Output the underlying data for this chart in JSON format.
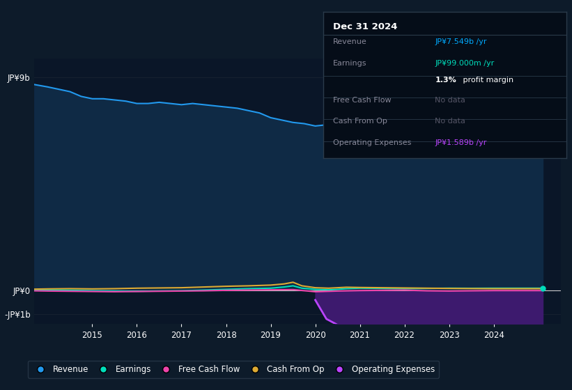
{
  "background_color": "#0d1b2a",
  "plot_bg_color": "#0a1628",
  "title": "Dec 31 2024",
  "info_box": {
    "bg": "#050d18",
    "border": "#2a3a4a",
    "title_color": "#ffffff",
    "label_color": "#888899",
    "nodata_color": "#555566",
    "rows": [
      {
        "label": "Revenue",
        "value": "JP¥7.549b /yr",
        "value_color": "#00aaff"
      },
      {
        "label": "Earnings",
        "value": "JP¥99.000m /yr",
        "value_color": "#00ddbb"
      },
      {
        "label": "",
        "value": "1.3% profit margin",
        "value_color": "#ffffff",
        "bold_part": "1.3%"
      },
      {
        "label": "Free Cash Flow",
        "value": "No data",
        "value_color": "#555566"
      },
      {
        "label": "Cash From Op",
        "value": "No data",
        "value_color": "#555566"
      },
      {
        "label": "Operating Expenses",
        "value": "JP¥1.589b /yr",
        "value_color": "#bb44ff"
      }
    ]
  },
  "y_labels": [
    "JP¥9b",
    "JP¥0",
    "-JP¥1b"
  ],
  "y_ticks": [
    9000000000,
    0,
    -1000000000
  ],
  "x_ticks": [
    2015,
    2016,
    2017,
    2018,
    2019,
    2020,
    2021,
    2022,
    2023,
    2024
  ],
  "ylim": [
    -1400000000,
    9800000000
  ],
  "xlim_start": 2013.7,
  "xlim_end": 2025.5,
  "revenue_color": "#2299ee",
  "revenue_fill": "#0f2a45",
  "earnings_color": "#00ddbb",
  "fcf_color": "#ee44aa",
  "cashop_color": "#ddaa33",
  "opex_color": "#bb44ff",
  "opex_fill": "#3d1a6e",
  "grid_color": "#162030",
  "zero_line_color": "#cccccc",
  "legend_items": [
    {
      "label": "Revenue",
      "color": "#2299ee"
    },
    {
      "label": "Earnings",
      "color": "#00ddbb"
    },
    {
      "label": "Free Cash Flow",
      "color": "#ee44aa"
    },
    {
      "label": "Cash From Op",
      "color": "#ddaa33"
    },
    {
      "label": "Operating Expenses",
      "color": "#bb44ff"
    }
  ],
  "revenue_data": {
    "years": [
      2013.7,
      2014.0,
      2014.25,
      2014.5,
      2014.75,
      2015.0,
      2015.25,
      2015.5,
      2015.75,
      2016.0,
      2016.25,
      2016.5,
      2016.75,
      2017.0,
      2017.25,
      2017.5,
      2017.75,
      2018.0,
      2018.25,
      2018.5,
      2018.75,
      2019.0,
      2019.25,
      2019.5,
      2019.75,
      2020.0,
      2020.25,
      2020.5,
      2020.75,
      2021.0,
      2021.25,
      2021.5,
      2021.75,
      2022.0,
      2022.25,
      2022.5,
      2022.75,
      2023.0,
      2023.25,
      2023.5,
      2023.75,
      2024.0,
      2024.25,
      2024.5,
      2024.75,
      2025.1
    ],
    "values": [
      8700000000,
      8600000000,
      8500000000,
      8400000000,
      8200000000,
      8100000000,
      8100000000,
      8050000000,
      8000000000,
      7900000000,
      7900000000,
      7950000000,
      7900000000,
      7850000000,
      7900000000,
      7850000000,
      7800000000,
      7750000000,
      7700000000,
      7600000000,
      7500000000,
      7300000000,
      7200000000,
      7100000000,
      7050000000,
      6950000000,
      7000000000,
      7050000000,
      7100000000,
      7200000000,
      7250000000,
      7350000000,
      7400000000,
      7450000000,
      7500000000,
      7480000000,
      7470000000,
      7480000000,
      7490000000,
      7500000000,
      7510000000,
      7520000000,
      7560000000,
      7600000000,
      7620000000,
      7549000000
    ]
  },
  "earnings_data": {
    "years": [
      2013.7,
      2014.0,
      2014.5,
      2015.0,
      2015.5,
      2016.0,
      2016.5,
      2017.0,
      2017.5,
      2018.0,
      2018.5,
      2019.0,
      2019.3,
      2019.5,
      2019.7,
      2020.0,
      2020.3,
      2020.5,
      2020.7,
      2021.0,
      2021.5,
      2022.0,
      2022.5,
      2023.0,
      2023.5,
      2024.0,
      2025.1
    ],
    "values": [
      30000000,
      20000000,
      10000000,
      -10000000,
      -20000000,
      -30000000,
      -20000000,
      -10000000,
      20000000,
      50000000,
      80000000,
      100000000,
      150000000,
      200000000,
      100000000,
      50000000,
      30000000,
      50000000,
      80000000,
      100000000,
      90000000,
      80000000,
      90000000,
      100000000,
      95000000,
      99000000,
      99000000
    ]
  },
  "fcf_data": {
    "years": [
      2013.7,
      2014.0,
      2014.5,
      2015.0,
      2015.5,
      2016.0,
      2016.5,
      2017.0,
      2017.5,
      2018.0,
      2018.5,
      2019.0,
      2019.5,
      2020.0,
      2020.5,
      2021.0,
      2021.5,
      2022.0,
      2022.5,
      2023.0,
      2023.5,
      2024.0,
      2025.1
    ],
    "values": [
      -10000000,
      -20000000,
      -30000000,
      -40000000,
      -50000000,
      -40000000,
      -30000000,
      -20000000,
      -10000000,
      10000000,
      20000000,
      30000000,
      40000000,
      -50000000,
      -20000000,
      0,
      10000000,
      20000000,
      -10000000,
      -20000000,
      -10000000,
      0,
      0
    ]
  },
  "cashop_data": {
    "years": [
      2013.7,
      2014.0,
      2014.5,
      2015.0,
      2015.5,
      2016.0,
      2016.5,
      2017.0,
      2017.5,
      2018.0,
      2018.5,
      2019.0,
      2019.3,
      2019.5,
      2019.7,
      2020.0,
      2020.3,
      2020.5,
      2020.7,
      2021.0,
      2021.5,
      2022.0,
      2022.5,
      2023.0,
      2023.5,
      2024.0,
      2025.1
    ],
    "values": [
      60000000,
      70000000,
      80000000,
      70000000,
      80000000,
      100000000,
      110000000,
      120000000,
      150000000,
      180000000,
      200000000,
      230000000,
      280000000,
      350000000,
      200000000,
      120000000,
      100000000,
      120000000,
      140000000,
      130000000,
      120000000,
      110000000,
      100000000,
      90000000,
      85000000,
      80000000,
      80000000
    ]
  },
  "opex_data": {
    "years": [
      2020.0,
      2020.25,
      2020.5,
      2020.75,
      2021.0,
      2021.5,
      2022.0,
      2022.5,
      2023.0,
      2023.5,
      2024.0,
      2024.5,
      2025.1
    ],
    "values": [
      -400000000,
      -1200000000,
      -1450000000,
      -1500000000,
      -1520000000,
      -1530000000,
      -1540000000,
      -1540000000,
      -1545000000,
      -1550000000,
      -1570000000,
      -1580000000,
      -1589000000
    ]
  }
}
